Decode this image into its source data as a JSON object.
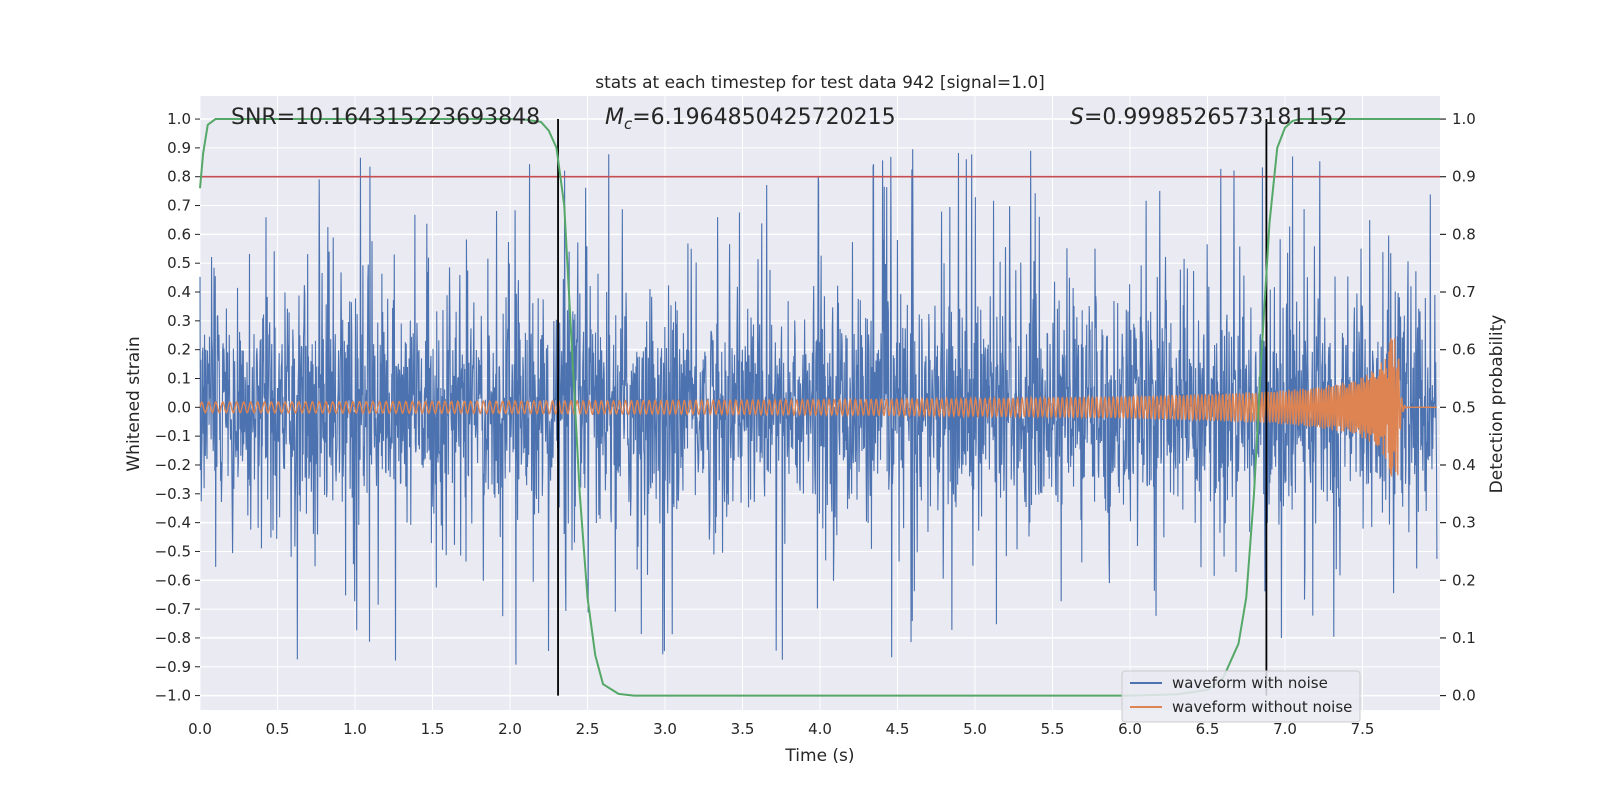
{
  "chart_data": {
    "type": "line",
    "title": "stats at each timestep for test data 942 [signal=1.0]",
    "xlabel": "Time (s)",
    "ylabel_left": "Whitened strain",
    "ylabel_right": "Detection probability",
    "xlim": [
      0.0,
      8.0
    ],
    "ylim_left": [
      -1.05,
      1.08
    ],
    "ylim_right": [
      -0.025,
      1.04
    ],
    "x_ticks": [
      "0.0",
      "0.5",
      "1.0",
      "1.5",
      "2.0",
      "2.5",
      "3.0",
      "3.5",
      "4.0",
      "4.5",
      "5.0",
      "5.5",
      "6.0",
      "6.5",
      "7.0",
      "7.5"
    ],
    "y_left_ticks": [
      "1.0",
      "0.9",
      "0.8",
      "0.7",
      "0.6",
      "0.5",
      "0.4",
      "0.3",
      "0.2",
      "0.1",
      "0.0",
      "−0.1",
      "−0.2",
      "−0.3",
      "−0.4",
      "−0.5",
      "−0.6",
      "−0.7",
      "−0.8",
      "−0.9",
      "−1.0"
    ],
    "y_right_ticks": [
      "1.0",
      "0.9",
      "0.8",
      "0.7",
      "0.6",
      "0.5",
      "0.4",
      "0.3",
      "0.2",
      "0.1",
      "0.0"
    ],
    "grid": true,
    "legend_position": "lower-right",
    "annotations": {
      "snr": "SNR=10.164315223693848",
      "mc_prefix": "M",
      "mc_sub": "c",
      "mc_value": "=6.1964850425720215",
      "s_prefix": "S",
      "s_value": "=0.9998526573181152"
    },
    "threshold": 0.8,
    "vertical_lines": [
      2.31,
      6.88
    ],
    "series": [
      {
        "name": "waveform with noise",
        "color": "#4c72b0",
        "description_of_shape": "dense noisy strain spanning roughly -0.85 to 1.0 over 0-8 s"
      },
      {
        "name": "waveform without noise",
        "color": "#dd8452",
        "description_of_shape": "chirp with amplitude growing from ~0.02 to ~0.23 at ~7.73 s then ringdown"
      },
      {
        "name": "",
        "color": "#55a868",
        "axis": "right",
        "x": [
          0.0,
          0.02,
          0.05,
          0.1,
          0.15,
          0.2,
          0.5,
          1.0,
          1.5,
          2.0,
          2.1,
          2.2,
          2.25,
          2.3,
          2.35,
          2.4,
          2.45,
          2.5,
          2.55,
          2.6,
          2.7,
          2.8,
          3.0,
          3.5,
          4.0,
          4.5,
          5.0,
          5.5,
          6.0,
          6.3,
          6.5,
          6.6,
          6.7,
          6.75,
          6.8,
          6.85,
          6.9,
          6.95,
          7.0,
          7.05,
          7.1,
          7.3,
          7.5,
          7.7,
          8.0
        ],
        "y": [
          0.88,
          0.94,
          0.99,
          1.0,
          1.0,
          1.0,
          1.0,
          1.0,
          1.0,
          1.0,
          0.999,
          0.995,
          0.98,
          0.95,
          0.85,
          0.6,
          0.35,
          0.17,
          0.07,
          0.02,
          0.003,
          0.0,
          0.0,
          0.0,
          0.0,
          0.0,
          0.0,
          0.0,
          0.0,
          0.002,
          0.01,
          0.03,
          0.09,
          0.17,
          0.35,
          0.6,
          0.82,
          0.95,
          0.985,
          0.997,
          1.0,
          1.0,
          1.0,
          1.0,
          1.0
        ]
      }
    ],
    "threshold_color": "#c44e52",
    "vline_color": "#000000"
  }
}
